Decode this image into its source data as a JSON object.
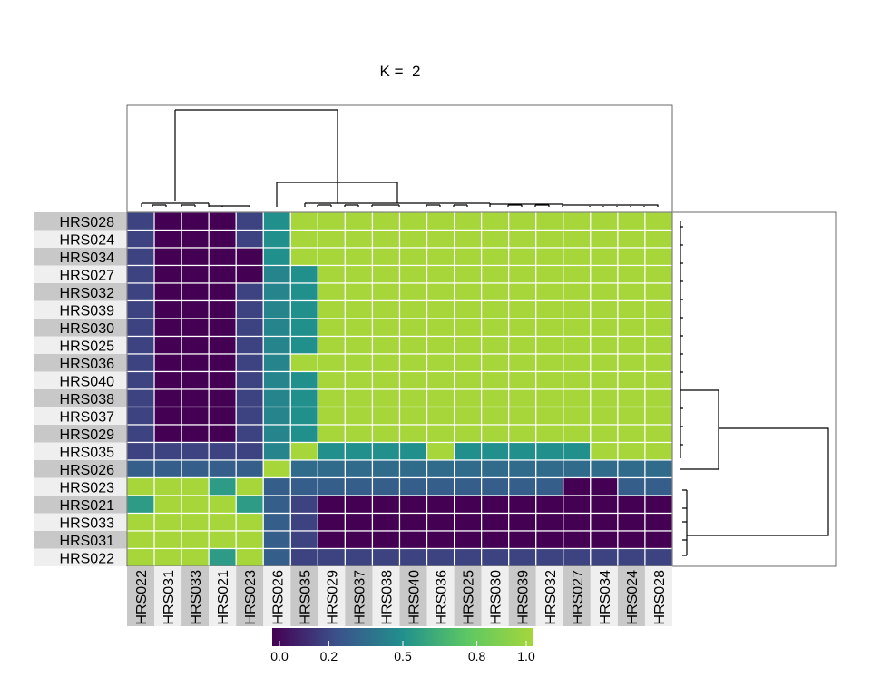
{
  "title": "K =  2",
  "colors": {
    "viridis_stops": [
      "#440154",
      "#3b528b",
      "#21908d",
      "#5dc863",
      "#a6d63a"
    ],
    "row_label_bg_a": "#c8c8c8",
    "row_label_bg_b": "#efefef",
    "grid": "#ffffff",
    "line": "#000000"
  },
  "chart_data": {
    "type": "heatmap",
    "title": "K =  2",
    "rows": [
      "HRS028",
      "HRS024",
      "HRS034",
      "HRS027",
      "HRS032",
      "HRS039",
      "HRS030",
      "HRS025",
      "HRS036",
      "HRS040",
      "HRS038",
      "HRS037",
      "HRS029",
      "HRS035",
      "HRS026",
      "HRS023",
      "HRS021",
      "HRS033",
      "HRS031",
      "HRS022"
    ],
    "columns": [
      "HRS022",
      "HRS031",
      "HRS033",
      "HRS021",
      "HRS023",
      "HRS026",
      "HRS035",
      "HRS029",
      "HRS037",
      "HRS038",
      "HRS040",
      "HRS036",
      "HRS025",
      "HRS030",
      "HRS039",
      "HRS032",
      "HRS027",
      "HRS034",
      "HRS024",
      "HRS028"
    ],
    "values": [
      [
        0.2,
        0,
        0,
        0,
        0.2,
        0.5,
        1,
        1,
        1,
        1,
        1,
        1,
        1,
        1,
        1,
        1,
        1,
        1,
        1,
        1
      ],
      [
        0.2,
        0,
        0,
        0,
        0.2,
        0.5,
        1,
        1,
        1,
        1,
        1,
        1,
        1,
        1,
        1,
        1,
        1,
        1,
        1,
        1
      ],
      [
        0.2,
        0,
        0,
        0,
        0,
        0.5,
        1,
        1,
        1,
        1,
        1,
        1,
        1,
        1,
        1,
        1,
        1,
        1,
        1,
        1
      ],
      [
        0.2,
        0,
        0,
        0,
        0,
        0.45,
        0.5,
        1,
        1,
        1,
        1,
        1,
        1,
        1,
        1,
        1,
        1,
        1,
        1,
        1
      ],
      [
        0.2,
        0,
        0,
        0,
        0.2,
        0.45,
        0.5,
        1,
        1,
        1,
        1,
        1,
        1,
        1,
        1,
        1,
        1,
        1,
        1,
        1
      ],
      [
        0.2,
        0,
        0,
        0,
        0.2,
        0.45,
        0.5,
        1,
        1,
        1,
        1,
        1,
        1,
        1,
        1,
        1,
        1,
        1,
        1,
        1
      ],
      [
        0.2,
        0,
        0,
        0,
        0.2,
        0.45,
        0.5,
        1,
        1,
        1,
        1,
        1,
        1,
        1,
        1,
        1,
        1,
        1,
        1,
        1
      ],
      [
        0.2,
        0,
        0,
        0,
        0.2,
        0.45,
        0.5,
        1,
        1,
        1,
        1,
        1,
        1,
        1,
        1,
        1,
        1,
        1,
        1,
        1
      ],
      [
        0.2,
        0,
        0,
        0,
        0.2,
        0.45,
        1,
        1,
        1,
        1,
        1,
        1,
        1,
        1,
        1,
        1,
        1,
        1,
        1,
        1
      ],
      [
        0.2,
        0,
        0,
        0,
        0.2,
        0.45,
        0.5,
        1,
        1,
        1,
        1,
        1,
        1,
        1,
        1,
        1,
        1,
        1,
        1,
        1
      ],
      [
        0.2,
        0,
        0,
        0,
        0.2,
        0.45,
        0.5,
        1,
        1,
        1,
        1,
        1,
        1,
        1,
        1,
        1,
        1,
        1,
        1,
        1
      ],
      [
        0.2,
        0,
        0,
        0,
        0.2,
        0.45,
        0.5,
        1,
        1,
        1,
        1,
        1,
        1,
        1,
        1,
        1,
        1,
        1,
        1,
        1
      ],
      [
        0.2,
        0,
        0,
        0,
        0.2,
        0.45,
        0.5,
        1,
        1,
        1,
        1,
        1,
        1,
        1,
        1,
        1,
        1,
        1,
        1,
        1
      ],
      [
        0.2,
        0.2,
        0.2,
        0.2,
        0.2,
        0.45,
        1,
        0.5,
        0.5,
        0.5,
        0.5,
        1,
        0.5,
        0.5,
        0.5,
        0.5,
        0.5,
        1,
        1,
        1
      ],
      [
        0.3,
        0.3,
        0.3,
        0.3,
        0.3,
        1,
        0.35,
        0.35,
        0.35,
        0.35,
        0.35,
        0.35,
        0.35,
        0.35,
        0.35,
        0.35,
        0.35,
        0.35,
        0.35,
        0.35
      ],
      [
        1,
        1,
        1,
        0.55,
        1,
        0.3,
        0.3,
        0.3,
        0.3,
        0.3,
        0.3,
        0.3,
        0.3,
        0.3,
        0.3,
        0.3,
        0,
        0,
        0.3,
        0.3
      ],
      [
        0.55,
        1,
        1,
        1,
        0.55,
        0.3,
        0.2,
        0,
        0,
        0,
        0,
        0,
        0,
        0,
        0,
        0,
        0,
        0,
        0,
        0
      ],
      [
        1,
        1,
        1,
        1,
        1,
        0.3,
        0.2,
        0,
        0,
        0,
        0,
        0,
        0,
        0,
        0,
        0,
        0,
        0,
        0,
        0
      ],
      [
        1,
        1,
        1,
        1,
        1,
        0.3,
        0.2,
        0,
        0,
        0,
        0,
        0,
        0,
        0,
        0,
        0,
        0,
        0,
        0,
        0
      ],
      [
        1,
        1,
        1,
        0.55,
        1,
        0.3,
        0.2,
        0.2,
        0.2,
        0.2,
        0.2,
        0.2,
        0.2,
        0.2,
        0.2,
        0.2,
        0.2,
        0.2,
        0.2,
        0.2
      ]
    ],
    "colorbar": {
      "range": [
        0,
        1
      ],
      "ticks": [
        0.0,
        0.2,
        0.5,
        0.8,
        1.0
      ],
      "tick_labels": [
        "0.0",
        "0.2",
        "0.5",
        "0.8",
        "1.0"
      ]
    }
  }
}
